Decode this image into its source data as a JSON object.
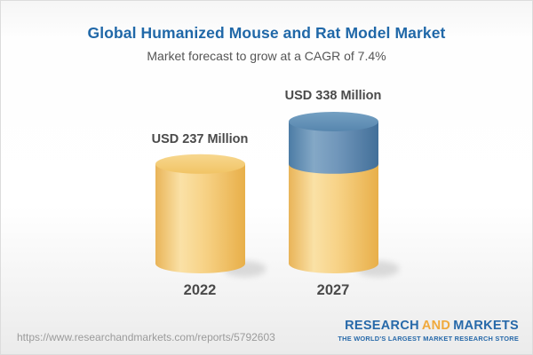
{
  "header": {
    "title": "Global Humanized Mouse and Rat Model Market",
    "subtitle": "Market forecast to grow at a CAGR of 7.4%"
  },
  "chart_data": {
    "type": "bar",
    "style": "3d-cylinder-stacked",
    "orientation": "vertical",
    "grid": false,
    "legend": "none",
    "unit": "USD Million",
    "cagr_percent": 7.4,
    "categories": [
      "2022",
      "2027"
    ],
    "values": [
      237,
      338
    ],
    "value_labels": [
      "USD 237 Million",
      "USD 338 Million"
    ],
    "bars": [
      {
        "category": "2022",
        "total": 237,
        "segments": [
          {
            "name": "base",
            "value": 237,
            "color": "#F2C76F"
          }
        ]
      },
      {
        "category": "2027",
        "total": 338,
        "segments": [
          {
            "name": "base",
            "value": 237,
            "color": "#F2C76F"
          },
          {
            "name": "growth",
            "value": 101,
            "color": "#5E8DB5"
          }
        ]
      }
    ],
    "colors": {
      "base_segment": "#F2C76F",
      "growth_segment": "#5E8DB5",
      "label_text": "#4A4A4A"
    }
  },
  "footer": {
    "url": "https://www.researchandmarkets.com/reports/5792603",
    "logo": {
      "part1": "RESEARCH",
      "part2": "AND",
      "part3": "MARKETS",
      "tagline": "THE WORLD'S LARGEST MARKET RESEARCH STORE",
      "color_primary": "#2769A9",
      "color_accent": "#F0A93B"
    }
  },
  "theme": {
    "title_color": "#2068A8",
    "subtitle_color": "#555555",
    "background_top": "#F6F6F6",
    "background_bottom": "#EBEBEB"
  }
}
